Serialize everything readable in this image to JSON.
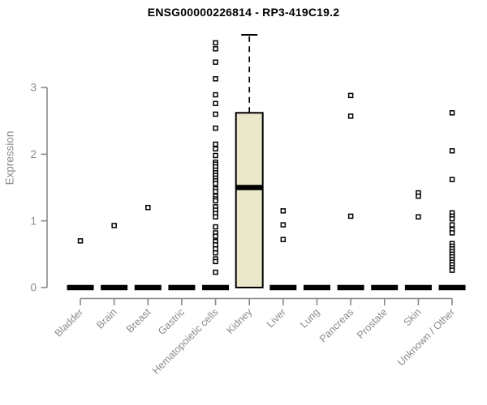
{
  "title": "ENSG00000226814 - RP3-419C19.2",
  "chart_data": {
    "type": "boxplot",
    "title": "ENSG00000226814 - RP3-419C19.2",
    "xlabel": "",
    "ylabel": "Expression",
    "ylim": [
      0,
      3.85
    ],
    "yticks": [
      0,
      1,
      2,
      3
    ],
    "grid": false,
    "legend": "none",
    "axis_color": "#8a8a8a",
    "box_fill_color": "#EBE7CA",
    "box_stroke_color": "#000000",
    "outlier_marker": "open-square",
    "categories": [
      "Bladder",
      "Brain",
      "Breast",
      "Gastric",
      "Hematopoietic cells",
      "Kidney",
      "Liver",
      "Lung",
      "Pancreas",
      "Prostate",
      "Skin",
      "Unknown / Other"
    ],
    "series": [
      {
        "category": "Bladder",
        "whisker_low": 0,
        "q1": 0,
        "median": 0,
        "q3": 0,
        "whisker_high": 0,
        "outliers": [
          0.7
        ]
      },
      {
        "category": "Brain",
        "whisker_low": 0,
        "q1": 0,
        "median": 0,
        "q3": 0,
        "whisker_high": 0,
        "outliers": [
          0.93
        ]
      },
      {
        "category": "Breast",
        "whisker_low": 0,
        "q1": 0,
        "median": 0,
        "q3": 0,
        "whisker_high": 0,
        "outliers": [
          1.2
        ]
      },
      {
        "category": "Gastric",
        "whisker_low": 0,
        "q1": 0,
        "median": 0,
        "q3": 0,
        "whisker_high": 0,
        "outliers": []
      },
      {
        "category": "Hematopoietic cells",
        "whisker_low": 0,
        "q1": 0,
        "median": 0,
        "q3": 0,
        "whisker_high": 0,
        "outliers": [
          3.67,
          3.58,
          3.38,
          3.13,
          2.89,
          2.76,
          2.6,
          2.39,
          2.15,
          2.08,
          1.98,
          1.88,
          1.85,
          1.81,
          1.76,
          1.72,
          1.68,
          1.64,
          1.6,
          1.56,
          1.48,
          1.44,
          1.37,
          1.33,
          1.3,
          1.21,
          1.16,
          1.11,
          1.06,
          0.91,
          0.82,
          0.77,
          0.69,
          0.64,
          0.58,
          0.52,
          0.43,
          0.39,
          0.23
        ]
      },
      {
        "category": "Kidney",
        "whisker_low": 0,
        "q1": 0,
        "median": 1.5,
        "q3": 2.62,
        "whisker_high": 3.79,
        "outliers": []
      },
      {
        "category": "Liver",
        "whisker_low": 0,
        "q1": 0,
        "median": 0,
        "q3": 0,
        "whisker_high": 0,
        "outliers": [
          1.15,
          0.94,
          0.72
        ]
      },
      {
        "category": "Lung",
        "whisker_low": 0,
        "q1": 0,
        "median": 0,
        "q3": 0,
        "whisker_high": 0,
        "outliers": []
      },
      {
        "category": "Pancreas",
        "whisker_low": 0,
        "q1": 0,
        "median": 0,
        "q3": 0,
        "whisker_high": 0,
        "outliers": [
          2.88,
          2.57,
          1.07
        ]
      },
      {
        "category": "Prostate",
        "whisker_low": 0,
        "q1": 0,
        "median": 0,
        "q3": 0,
        "whisker_high": 0,
        "outliers": []
      },
      {
        "category": "Skin",
        "whisker_low": 0,
        "q1": 0,
        "median": 0,
        "q3": 0,
        "whisker_high": 0,
        "outliers": [
          1.42,
          1.37,
          1.06
        ]
      },
      {
        "category": "Unknown / Other",
        "whisker_low": 0,
        "q1": 0,
        "median": 0,
        "q3": 0,
        "whisker_high": 0,
        "outliers": [
          2.62,
          2.05,
          1.62,
          1.12,
          1.07,
          1.03,
          0.94,
          0.87,
          0.82,
          0.66,
          0.62,
          0.58,
          0.54,
          0.5,
          0.46,
          0.42,
          0.38,
          0.34,
          0.3,
          0.26
        ]
      }
    ]
  }
}
